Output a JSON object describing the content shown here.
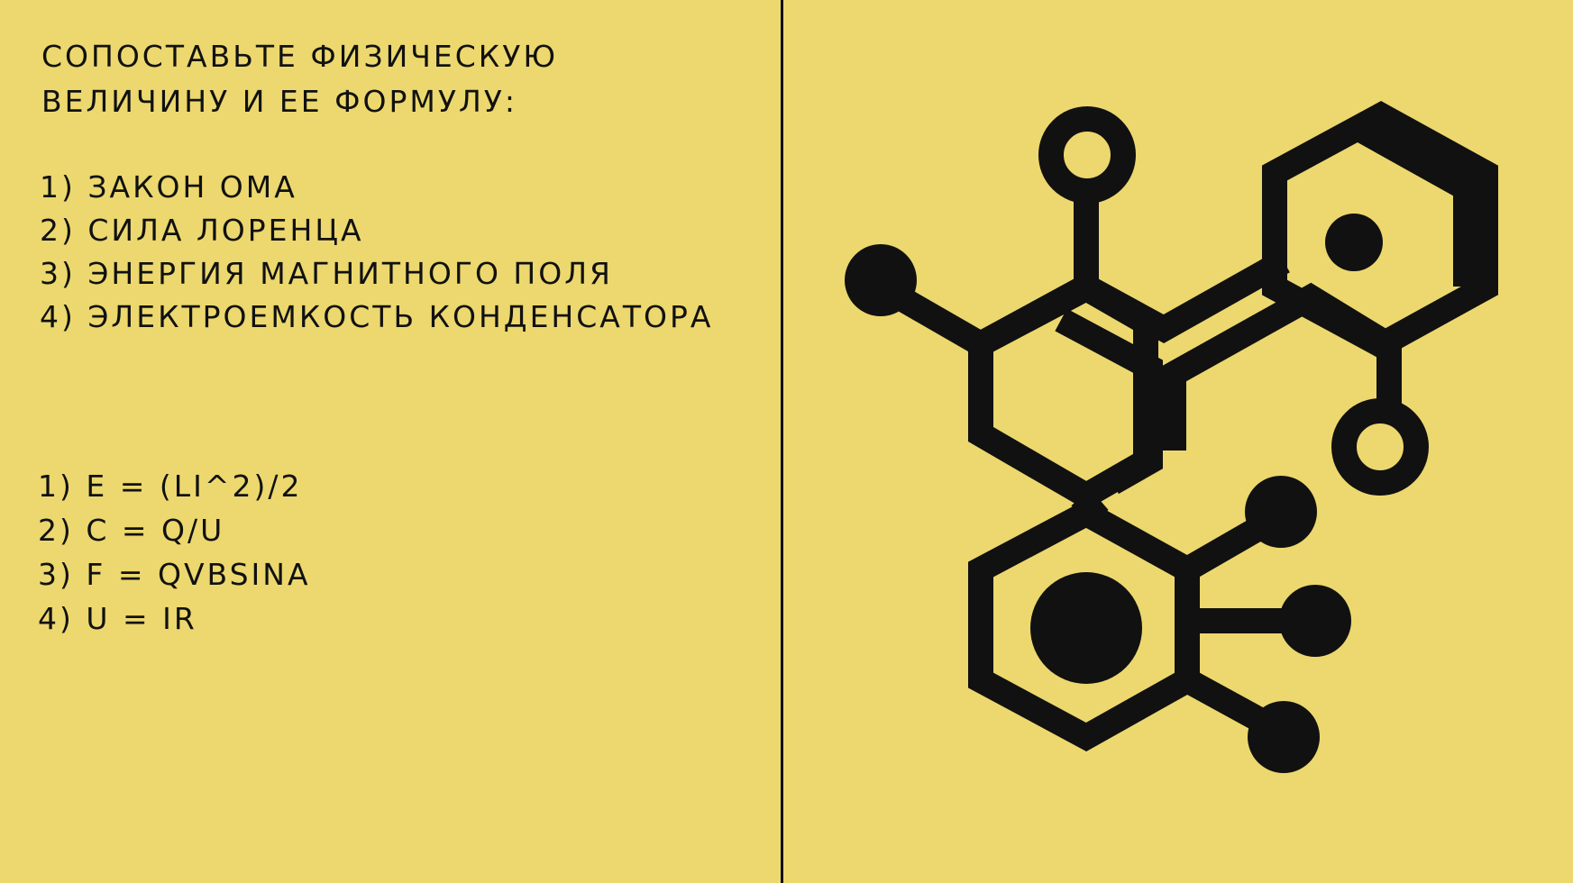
{
  "colors": {
    "background": "#ecd86e",
    "ink": "#111111"
  },
  "task": {
    "title": "Сопоставьте физическую величину и ее формулу:",
    "quantities": [
      "1) Закон Ома",
      "2) Сила Лоренца",
      "3) Энергия магнитного поля",
      "4) Электроемкость конденсатора"
    ],
    "formulas": [
      "1) E = (LI^2)/2",
      "2) C = Q/U",
      "3) F = QVBSINα",
      "4) U = IR"
    ]
  },
  "illustration": {
    "icon": "molecule-icon"
  }
}
